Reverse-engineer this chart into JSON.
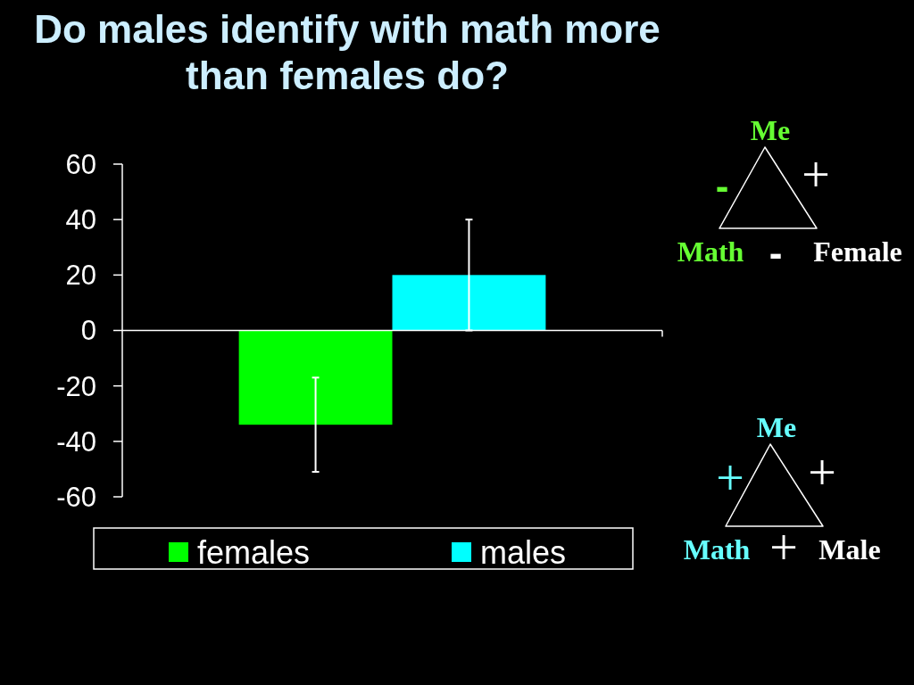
{
  "chart_data": {
    "type": "bar",
    "title": "Do males identify with math more than females do?",
    "categories": [
      null
    ],
    "series": [
      {
        "name": "females",
        "color": "#00ff00",
        "values": [
          -34
        ],
        "errors": [
          17
        ]
      },
      {
        "name": "males",
        "color": "#00ffff",
        "values": [
          20
        ],
        "errors": [
          20
        ]
      }
    ],
    "ylim": [
      -60,
      60
    ],
    "yticks": [
      -60,
      -40,
      -20,
      0,
      20,
      40,
      60
    ],
    "legend": "bottom",
    "tick_labels": "y",
    "annotations": [
      "Me",
      "-",
      "+",
      "Math",
      "-",
      "Female",
      "Me",
      "+",
      "+",
      "Math",
      "+",
      "Male"
    ]
  }
}
